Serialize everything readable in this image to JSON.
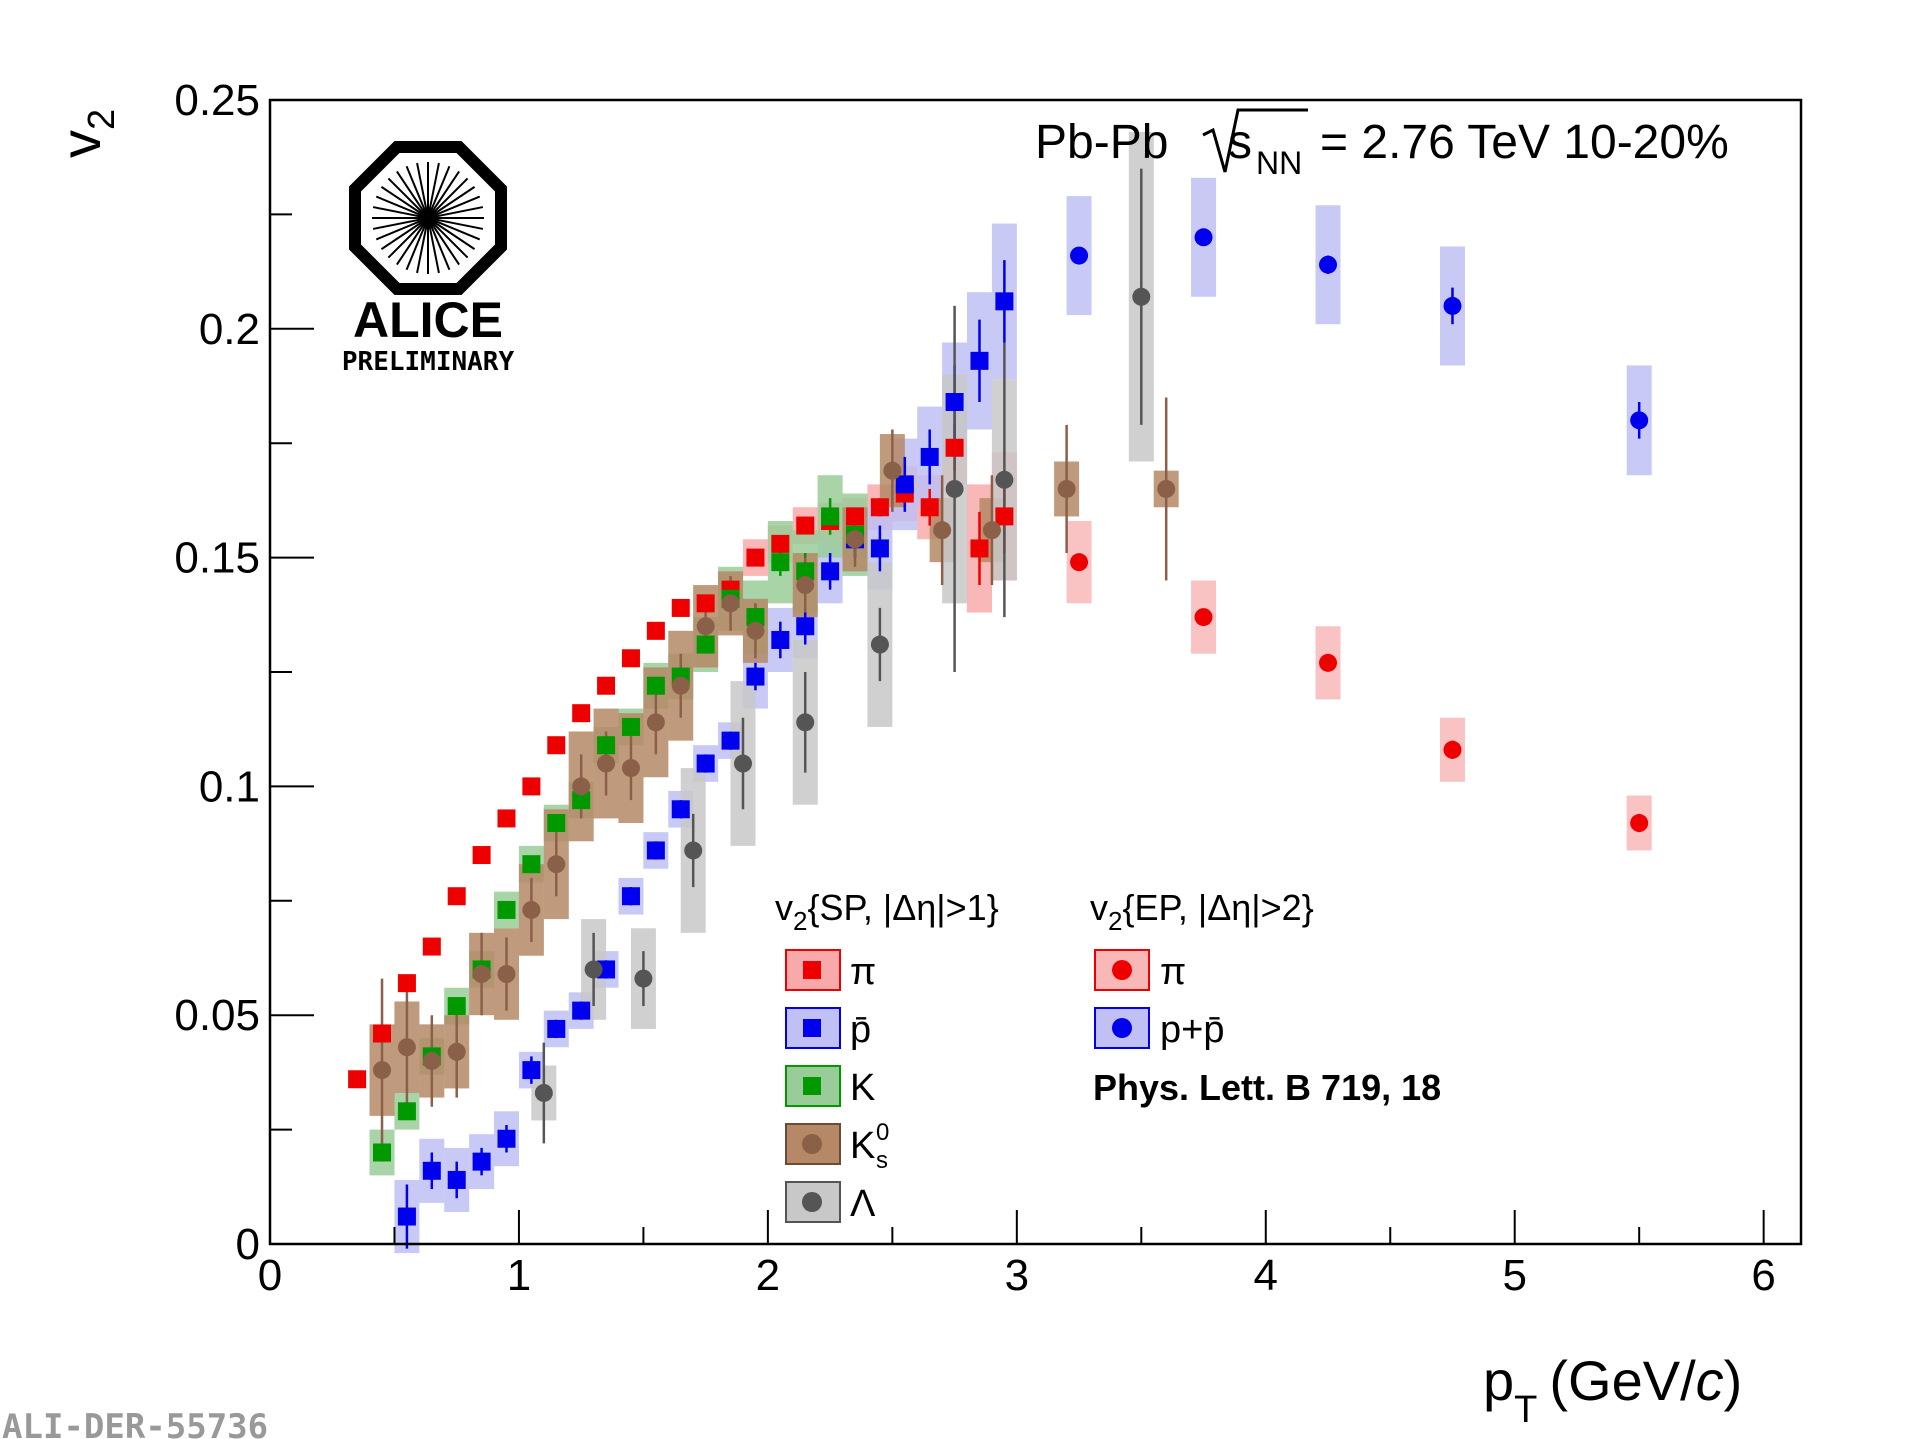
{
  "chart_data": {
    "type": "scatter",
    "title": "Pb-Pb √sNN = 2.76 TeV 10-20%",
    "title_parts": {
      "system": "Pb-Pb",
      "s": "s",
      "sub": "NN",
      "rest": "= 2.76 TeV 10-20%"
    },
    "xlabel": {
      "main": "p",
      "sub": "T",
      "units": "(GeV/",
      "c": "c",
      "close": ")"
    },
    "ylabel": {
      "main": "v",
      "sub": "2"
    },
    "xlim": [
      0,
      6.15
    ],
    "ylim": [
      0,
      0.25
    ],
    "x_ticks": [
      0,
      1,
      2,
      3,
      4,
      5,
      6
    ],
    "x_tick_labels": [
      "0",
      "1",
      "2",
      "3",
      "4",
      "5",
      "6"
    ],
    "y_ticks": [
      0,
      0.05,
      0.1,
      0.15,
      0.2,
      0.25
    ],
    "y_tick_labels": [
      "0",
      "0.05",
      "0.1",
      "0.15",
      "0.2",
      "0.25"
    ],
    "logo": {
      "name": "ALICE",
      "sub": "PRELIMINARY"
    },
    "watermark": "ALI-DER-55736",
    "reference": "Phys. Lett. B 719, 18",
    "legend_headers": {
      "sp": {
        "v": "v",
        "sub": "2",
        "rest": "{SP, |Δη|>1}"
      },
      "ep": {
        "v": "v",
        "sub": "2",
        "rest": "{EP, |Δη|>2}"
      }
    },
    "legend_labels": {
      "pi_sp": "π",
      "pbar_sp": "p̄",
      "k": "K",
      "k0s": "K",
      "k0s_sup": "0",
      "k0s_sub": "s",
      "lambda": "Λ",
      "pi_ep": "π",
      "ppbar_ep": "p+p̄"
    },
    "series": [
      {
        "name": "π {SP}",
        "marker": "square",
        "color": "#ee0000",
        "box_color": "#f8aaaa",
        "points": [
          [
            0.35,
            0.036,
            0,
            0
          ],
          [
            0.45,
            0.046,
            0,
            0
          ],
          [
            0.55,
            0.057,
            0,
            0
          ],
          [
            0.65,
            0.065,
            0,
            0
          ],
          [
            0.75,
            0.076,
            0,
            0
          ],
          [
            0.85,
            0.085,
            0,
            0
          ],
          [
            0.95,
            0.093,
            0,
            0
          ],
          [
            1.05,
            0.1,
            0,
            0
          ],
          [
            1.15,
            0.109,
            0,
            0
          ],
          [
            1.25,
            0.116,
            0,
            0
          ],
          [
            1.35,
            0.122,
            0,
            0
          ],
          [
            1.45,
            0.128,
            0,
            0
          ],
          [
            1.55,
            0.134,
            0,
            0
          ],
          [
            1.65,
            0.139,
            0,
            0
          ],
          [
            1.75,
            0.14,
            0,
            0
          ],
          [
            1.85,
            0.143,
            0,
            0
          ],
          [
            1.95,
            0.15,
            0.004,
            0
          ],
          [
            2.05,
            0.153,
            0.004,
            0
          ],
          [
            2.15,
            0.157,
            0.004,
            0
          ],
          [
            2.25,
            0.158,
            0.004,
            0
          ],
          [
            2.35,
            0.159,
            0.004,
            0
          ],
          [
            2.45,
            0.161,
            0.005,
            0.002
          ],
          [
            2.55,
            0.164,
            0.006,
            0.003
          ],
          [
            2.65,
            0.161,
            0.007,
            0.004
          ],
          [
            2.75,
            0.174,
            0.008,
            0.005
          ],
          [
            2.85,
            0.152,
            0.014,
            0.008
          ],
          [
            2.95,
            0.159,
            0.014,
            0.008
          ]
        ]
      },
      {
        "name": "p̄ {SP}",
        "marker": "square",
        "color": "#0000ee",
        "box_color": "#c0c0f4",
        "points": [
          [
            0.55,
            0.006,
            0.008,
            0.007
          ],
          [
            0.65,
            0.016,
            0.007,
            0.004
          ],
          [
            0.75,
            0.014,
            0.007,
            0.004
          ],
          [
            0.85,
            0.018,
            0.006,
            0.003
          ],
          [
            0.95,
            0.023,
            0.006,
            0.003
          ],
          [
            1.05,
            0.038,
            0.004,
            0.003
          ],
          [
            1.15,
            0.047,
            0.004,
            0.002
          ],
          [
            1.25,
            0.051,
            0.004,
            0.002
          ],
          [
            1.35,
            0.06,
            0.004,
            0.002
          ],
          [
            1.45,
            0.076,
            0.004,
            0.002
          ],
          [
            1.55,
            0.086,
            0.004,
            0.002
          ],
          [
            1.65,
            0.095,
            0.004,
            0.002
          ],
          [
            1.75,
            0.105,
            0.004,
            0.002
          ],
          [
            1.85,
            0.11,
            0.004,
            0.002
          ],
          [
            1.95,
            0.124,
            0.007,
            0.003
          ],
          [
            2.05,
            0.132,
            0.007,
            0.004
          ],
          [
            2.15,
            0.135,
            0.007,
            0.004
          ],
          [
            2.25,
            0.147,
            0.007,
            0.004
          ],
          [
            2.35,
            0.154,
            0.007,
            0.004
          ],
          [
            2.45,
            0.152,
            0.009,
            0.005
          ],
          [
            2.55,
            0.166,
            0.01,
            0.006
          ],
          [
            2.65,
            0.172,
            0.011,
            0.006
          ],
          [
            2.75,
            0.184,
            0.013,
            0.008
          ],
          [
            2.85,
            0.193,
            0.015,
            0.009
          ],
          [
            2.95,
            0.206,
            0.017,
            0.009
          ]
        ]
      },
      {
        "name": "K {SP}",
        "marker": "square",
        "color": "#009900",
        "box_color": "#99cc99",
        "points": [
          [
            0.45,
            0.02,
            0.005,
            0
          ],
          [
            0.55,
            0.029,
            0.004,
            0
          ],
          [
            0.65,
            0.041,
            0.004,
            0
          ],
          [
            0.75,
            0.052,
            0.004,
            0
          ],
          [
            0.85,
            0.06,
            0.004,
            0
          ],
          [
            0.95,
            0.073,
            0.004,
            0
          ],
          [
            1.05,
            0.083,
            0.004,
            0
          ],
          [
            1.15,
            0.092,
            0.004,
            0
          ],
          [
            1.25,
            0.097,
            0.004,
            0
          ],
          [
            1.35,
            0.109,
            0.004,
            0
          ],
          [
            1.45,
            0.113,
            0.004,
            0
          ],
          [
            1.55,
            0.122,
            0.005,
            0
          ],
          [
            1.65,
            0.124,
            0.005,
            0
          ],
          [
            1.75,
            0.131,
            0.006,
            0
          ],
          [
            1.85,
            0.141,
            0.007,
            0
          ],
          [
            1.95,
            0.137,
            0.008,
            0.003
          ],
          [
            2.05,
            0.149,
            0.009,
            0.003
          ],
          [
            2.15,
            0.147,
            0.009,
            0.004
          ],
          [
            2.25,
            0.159,
            0.009,
            0.004
          ],
          [
            2.35,
            0.155,
            0.009,
            0.004
          ]
        ]
      },
      {
        "name": "K0s {SP}",
        "marker": "circle",
        "color": "#8b6048",
        "box_color": "#b58866",
        "points": [
          [
            0.45,
            0.038,
            0.01,
            0.02
          ],
          [
            0.55,
            0.043,
            0.01,
            0.014
          ],
          [
            0.65,
            0.04,
            0.008,
            0.01
          ],
          [
            0.75,
            0.042,
            0.008,
            0.01
          ],
          [
            0.85,
            0.059,
            0.009,
            0.009
          ],
          [
            0.95,
            0.059,
            0.01,
            0.008
          ],
          [
            1.05,
            0.073,
            0.01,
            0.007
          ],
          [
            1.15,
            0.083,
            0.012,
            0.007
          ],
          [
            1.25,
            0.1,
            0.012,
            0.007
          ],
          [
            1.35,
            0.105,
            0.012,
            0.007
          ],
          [
            1.45,
            0.104,
            0.012,
            0.007
          ],
          [
            1.55,
            0.114,
            0.012,
            0.007
          ],
          [
            1.65,
            0.122,
            0.012,
            0.007
          ],
          [
            1.75,
            0.135,
            0.009,
            0.006
          ],
          [
            1.85,
            0.14,
            0.007,
            0.006
          ],
          [
            1.95,
            0.134,
            0.007,
            0.006
          ],
          [
            2.15,
            0.144,
            0.007,
            0.006
          ],
          [
            2.35,
            0.154,
            0.007,
            0.006
          ],
          [
            2.5,
            0.169,
            0.008,
            0.009
          ],
          [
            2.7,
            0.156,
            0.007,
            0.012
          ],
          [
            2.9,
            0.156,
            0.007,
            0.012
          ],
          [
            3.2,
            0.165,
            0.006,
            0.014
          ],
          [
            3.6,
            0.165,
            0.004,
            0.02
          ]
        ]
      },
      {
        "name": "Λ {SP}",
        "marker": "circle",
        "color": "#555555",
        "box_color": "#c8c8c8",
        "points": [
          [
            1.1,
            0.033,
            0.006,
            0.011
          ],
          [
            1.3,
            0.06,
            0.011,
            0.008
          ],
          [
            1.5,
            0.058,
            0.011,
            0.006
          ],
          [
            1.7,
            0.086,
            0.018,
            0.008
          ],
          [
            1.9,
            0.105,
            0.018,
            0.01
          ],
          [
            2.15,
            0.114,
            0.018,
            0.011
          ],
          [
            2.45,
            0.131,
            0.018,
            0.008
          ],
          [
            2.75,
            0.165,
            0.025,
            0.04
          ],
          [
            2.95,
            0.167,
            0.022,
            0.03
          ],
          [
            3.5,
            0.207,
            0.036,
            0.028
          ]
        ]
      },
      {
        "name": "π {EP}",
        "marker": "circle",
        "color": "#ee0000",
        "box_color": "#f8b8b8",
        "points": [
          [
            3.25,
            0.149,
            0.009,
            0
          ],
          [
            3.75,
            0.137,
            0.008,
            0
          ],
          [
            4.25,
            0.127,
            0.008,
            0
          ],
          [
            4.75,
            0.108,
            0.007,
            0.002
          ],
          [
            5.5,
            0.092,
            0.006,
            0.002
          ]
        ]
      },
      {
        "name": "p+p̄ {EP}",
        "marker": "circle",
        "color": "#0000ee",
        "box_color": "#c0c0f4",
        "points": [
          [
            3.25,
            0.216,
            0.013,
            0
          ],
          [
            3.75,
            0.22,
            0.013,
            0
          ],
          [
            4.25,
            0.214,
            0.013,
            0.002
          ],
          [
            4.75,
            0.205,
            0.013,
            0.004
          ],
          [
            5.5,
            0.18,
            0.012,
            0.004
          ]
        ]
      }
    ]
  }
}
